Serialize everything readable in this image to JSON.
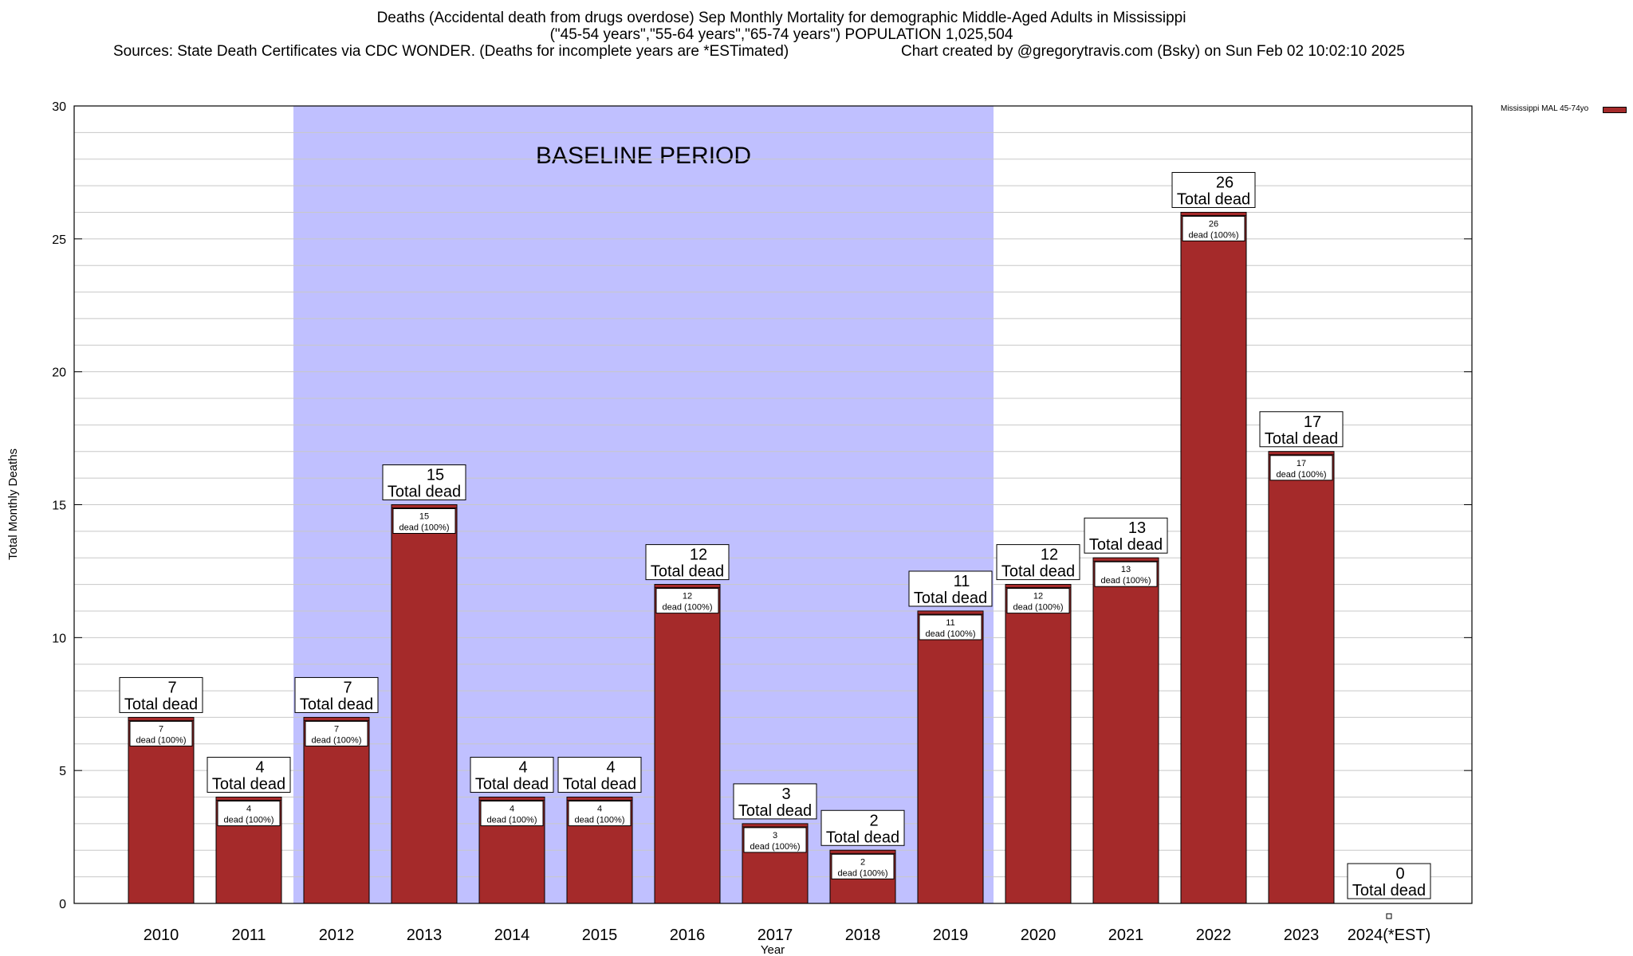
{
  "header": {
    "title_line1": "Deaths (Accidental death from drugs overdose) Sep Monthly Mortality for demographic Middle-Aged Adults in Mississippi",
    "title_line2": "(\"45-54 years\",\"55-64 years\",\"65-74 years\") POPULATION 1,025,504",
    "source_text": "Sources: State Death Certificates via CDC WONDER. (Deaths for incomplete years are *ESTimated)",
    "credit_text": "Chart created by @gregorytravis.com (Bsky) on Sun Feb 02 10:02:10 2025"
  },
  "legend": {
    "label": "Mississippi MAL 45-74yo",
    "position": "top-right"
  },
  "colors": {
    "bar": "#a52a2a",
    "bar_top": "#a52a2a",
    "baseline_shade": "#c0c0ff",
    "grid": "#c8c8c8"
  },
  "chart_data": {
    "type": "bar",
    "xlabel": "Year",
    "ylabel": "Total Monthly Deaths",
    "ylim": [
      0,
      30
    ],
    "yticks": [
      0,
      5,
      10,
      15,
      20,
      25,
      30
    ],
    "grid": true,
    "categories": [
      "2010",
      "2011",
      "2012",
      "2013",
      "2014",
      "2015",
      "2016",
      "2017",
      "2018",
      "2019",
      "2020",
      "2021",
      "2022",
      "2023",
      "2024(*EST)"
    ],
    "series": [
      {
        "name": "Mississippi MAL 45-74yo",
        "values": [
          7,
          4,
          7,
          15,
          4,
          4,
          12,
          3,
          2,
          11,
          12,
          13,
          26,
          17,
          0
        ]
      }
    ],
    "total_label": "Total dead",
    "inner_label_suffix": "dead (100%)",
    "annotation": {
      "text": "BASELINE PERIOD",
      "start_category": "2012",
      "end_category": "2019"
    }
  }
}
